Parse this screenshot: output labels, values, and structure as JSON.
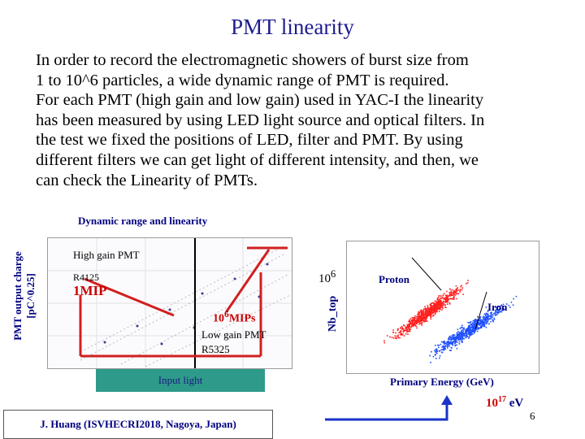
{
  "slide": {
    "title": "PMT linearity",
    "intro_lines": [
      "In order to record the electromagnetic showers of  burst size from",
      "1 to 10^6 particles,  a wide dynamic range of PMT is required.",
      "For each PMT (high gain and low gain) used in YAC-I the linearity",
      "has been measured by using LED light source and optical filters. In",
      "the test we fixed the positions of LED, filter and PMT. By using",
      "different filters we can get light of different intensity, and then, we",
      "can check  the Linearity of PMTs."
    ],
    "page_number": "6",
    "citation": "J. Huang  (ISVHECRI2018,  Nagoya,  Japan)"
  },
  "left_chart": {
    "caption": "Dynamic range and linearity",
    "ylabel_line1": "PMT output charge",
    "ylabel_line2": "[pC^0.25]",
    "high_gain": "High gain PMT",
    "high_gain_model": "R4125",
    "mip_label": "1MIP",
    "mips_label": "10^6MIPs",
    "mips_prefix": "10",
    "mips_exp": "6",
    "mips_suffix": "MIPs",
    "low_gain": "Low gain PMT",
    "low_gain_model": "R5325",
    "xlabel": "Input light"
  },
  "right_chart": {
    "top_label_base": "10",
    "top_label_exp": "6",
    "ylabel": "Nb_top",
    "proton_label": "Proton",
    "iron_label": "Iron",
    "xlabel": "Primary Energy (GeV)",
    "energy_base": "10",
    "energy_exp": "17",
    "energy_unit": " eV"
  },
  "colors": {
    "title": "#1d1d8f",
    "accent_red": "#cc0000",
    "label_blue": "#000080",
    "input_light_box": "#2e9a8a",
    "proton_scatter": "#ff2020",
    "iron_scatter": "#2050ff",
    "arrow_blue": "#1a33c8"
  }
}
